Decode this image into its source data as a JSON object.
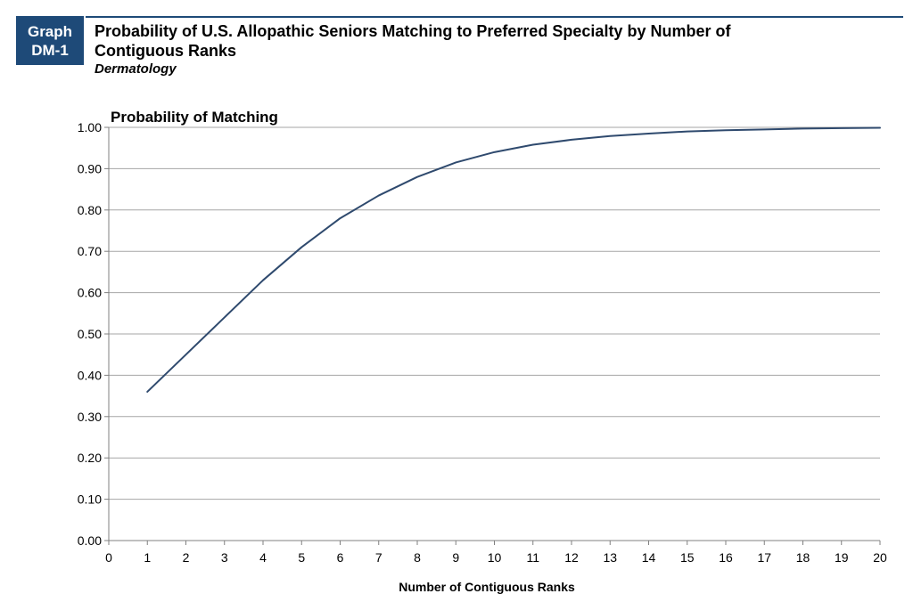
{
  "badge": {
    "line1": "Graph",
    "line2": "DM-1"
  },
  "header": {
    "title": "Probability of U.S. Allopathic Seniors Matching to Preferred Specialty by Number of Contiguous Ranks",
    "subtitle": "Dermatology"
  },
  "colors": {
    "brand": "#1e4a78",
    "line": "#2f4a6e",
    "grid": "#a6a6a6"
  },
  "chart_data": {
    "type": "line",
    "ylabel": "Probability of Matching",
    "xlabel": "Number of Contiguous Ranks",
    "xlim": [
      0,
      20
    ],
    "ylim": [
      0,
      1
    ],
    "grid": true,
    "x_ticks": [
      "0",
      "1",
      "2",
      "3",
      "4",
      "5",
      "6",
      "7",
      "8",
      "9",
      "10",
      "11",
      "12",
      "13",
      "14",
      "15",
      "16",
      "17",
      "18",
      "19",
      "20"
    ],
    "y_ticks": [
      "0.00",
      "0.10",
      "0.20",
      "0.30",
      "0.40",
      "0.50",
      "0.60",
      "0.70",
      "0.80",
      "0.90",
      "1.00"
    ],
    "series": [
      {
        "x": [
          1,
          2,
          3,
          4,
          5,
          6,
          7,
          8,
          9,
          10,
          11,
          12,
          13,
          14,
          15,
          16,
          17,
          18,
          19,
          20
        ],
        "values": [
          0.36,
          0.45,
          0.54,
          0.63,
          0.71,
          0.78,
          0.835,
          0.88,
          0.915,
          0.94,
          0.958,
          0.97,
          0.979,
          0.985,
          0.99,
          0.993,
          0.995,
          0.997,
          0.998,
          0.999
        ]
      }
    ]
  }
}
